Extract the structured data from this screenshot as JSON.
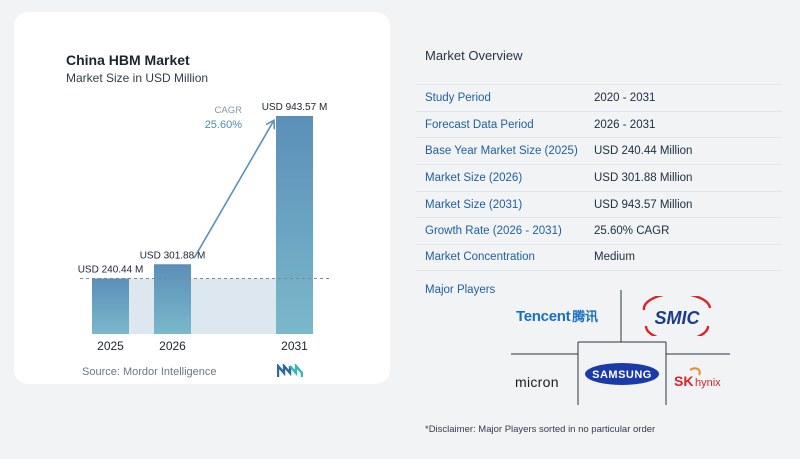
{
  "chart": {
    "title": "China HBM Market",
    "subtitle": "Market Size in USD Million",
    "source": "Source:  Mordor Intelligence"
  },
  "chart_data": {
    "type": "bar",
    "categories": [
      "2025",
      "2026",
      "2031"
    ],
    "values": [
      240.44,
      301.88,
      943.57
    ],
    "value_labels": [
      "USD 240.44 M",
      "USD 301.88 M",
      "USD 943.57 M"
    ],
    "cagr_label": "CAGR",
    "cagr_value": "25.60%",
    "colors": {
      "bar_top": "#5b8fb8",
      "bar_bottom": "#7ab8cb",
      "band": "#dde7ef",
      "arrow": "#5b8fb8"
    }
  },
  "overview": {
    "title": "Market Overview",
    "rows": [
      {
        "label": "Study Period",
        "value": "2020 - 2031"
      },
      {
        "label": "Forecast Data Period",
        "value": "2026 - 2031"
      },
      {
        "label": "Base Year Market Size (2025)",
        "value": "USD 240.44 Million"
      },
      {
        "label": "Market Size (2026)",
        "value": "USD 301.88 Million"
      },
      {
        "label": "Market Size (2031)",
        "value": "USD 943.57 Million"
      },
      {
        "label": "Growth Rate (2026 - 2031)",
        "value": "25.60% CAGR"
      },
      {
        "label": "Market Concentration",
        "value": "Medium"
      }
    ]
  },
  "players": {
    "title": "Major Players",
    "tencent": "Tencent",
    "tencent_cn": "腾讯",
    "smic": "SMIC",
    "micron": "micron",
    "samsung": "SAMSUNG",
    "sk": "SK",
    "hynix": "hynix"
  },
  "disclaimer": "*Disclaimer: Major Players sorted in no particular order"
}
